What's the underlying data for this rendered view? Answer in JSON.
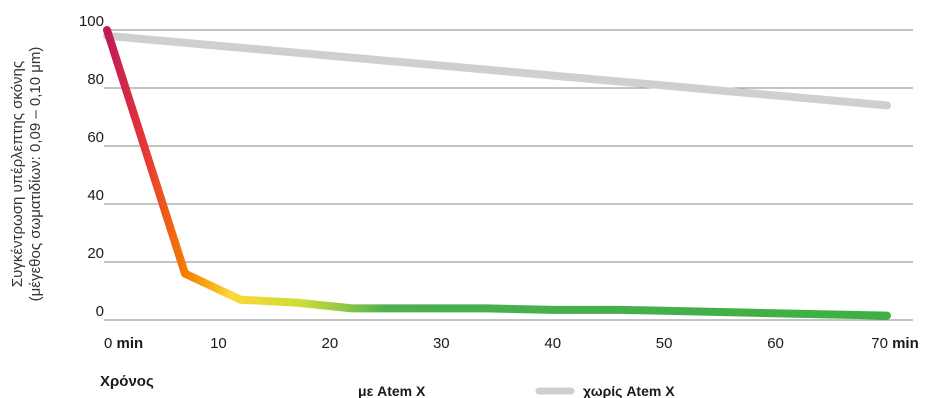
{
  "chart_data": {
    "type": "line",
    "x": [
      0,
      5,
      10,
      15,
      20,
      25,
      30,
      35,
      40,
      45,
      50,
      55,
      60,
      65,
      70
    ],
    "x_ticks": [
      "0",
      "10",
      "20",
      "30",
      "40",
      "50",
      "60",
      "70"
    ],
    "x_tick_values": [
      0,
      10,
      20,
      30,
      40,
      50,
      60,
      70
    ],
    "x_unit": "min",
    "y_ticks": [
      "0",
      "20",
      "40",
      "60",
      "80",
      "100"
    ],
    "y_tick_values": [
      0,
      20,
      40,
      60,
      80,
      100
    ],
    "xlim": [
      0,
      72
    ],
    "ylim": [
      0,
      100
    ],
    "xlabel": "Χρόνος",
    "ylabel_line1": "Συγκέντρωση υπέρλεπτης σκόνης",
    "ylabel_line2": "(μέγεθος σωματιδίων: 0,09 – 0,10 μm)",
    "grid": "horizontal",
    "legend_position": "bottom",
    "series": [
      {
        "name": "με Atem X",
        "x": [
          0,
          7,
          12,
          17,
          22,
          28,
          34,
          40,
          46,
          52,
          58,
          64,
          70
        ],
        "values": [
          100,
          16,
          7,
          6,
          4,
          4,
          4,
          3.5,
          3.5,
          3,
          2.5,
          2,
          1.5
        ],
        "colors": [
          "#c2185b",
          "#e53935",
          "#f57c00",
          "#fdd835",
          "#cddc39",
          "#4caf50",
          "#3cb043"
        ]
      },
      {
        "name": "χωρίς Atem X",
        "x": [
          0,
          70
        ],
        "values": [
          98,
          74
        ],
        "colors": [
          "#cfcfcf"
        ]
      }
    ]
  }
}
